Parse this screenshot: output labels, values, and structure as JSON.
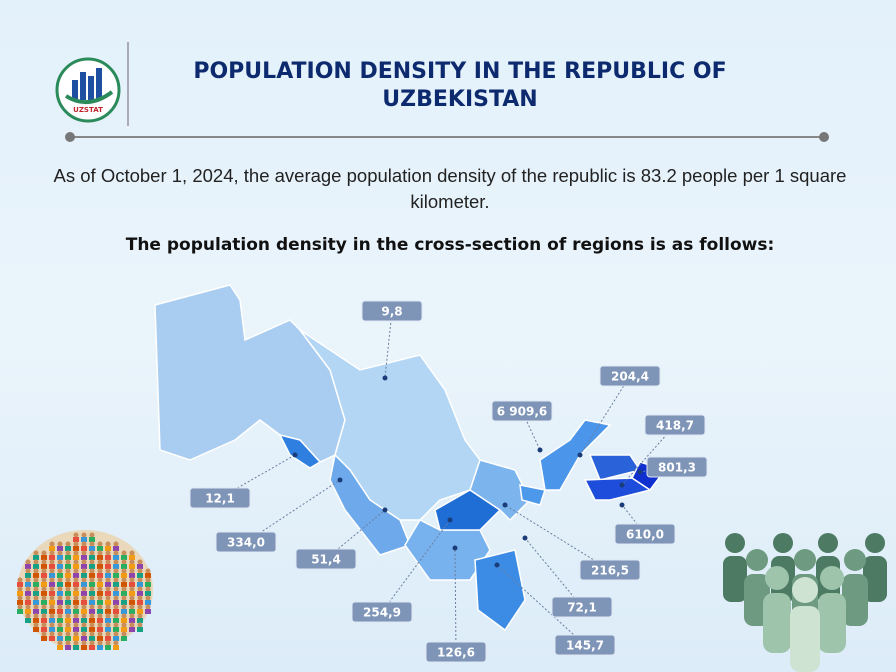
{
  "header": {
    "logo_text": "UZSTAT",
    "title": "POPULATION DENSITY IN THE REPUBLIC OF UZBEKISTAN"
  },
  "intro": "As of October 1, 2024, the average population density of the republic is 83.2 people per 1 square kilometer.",
  "subheading": "The population density in the cross-section of regions is as follows:",
  "map_labels": [
    "9,8",
    "204,4",
    "6 909,6",
    "418,7",
    "801,3",
    "12,1",
    "610,0",
    "334,0",
    "216,5",
    "51,4",
    "72,1",
    "254,9",
    "126,6",
    "145,7"
  ]
}
